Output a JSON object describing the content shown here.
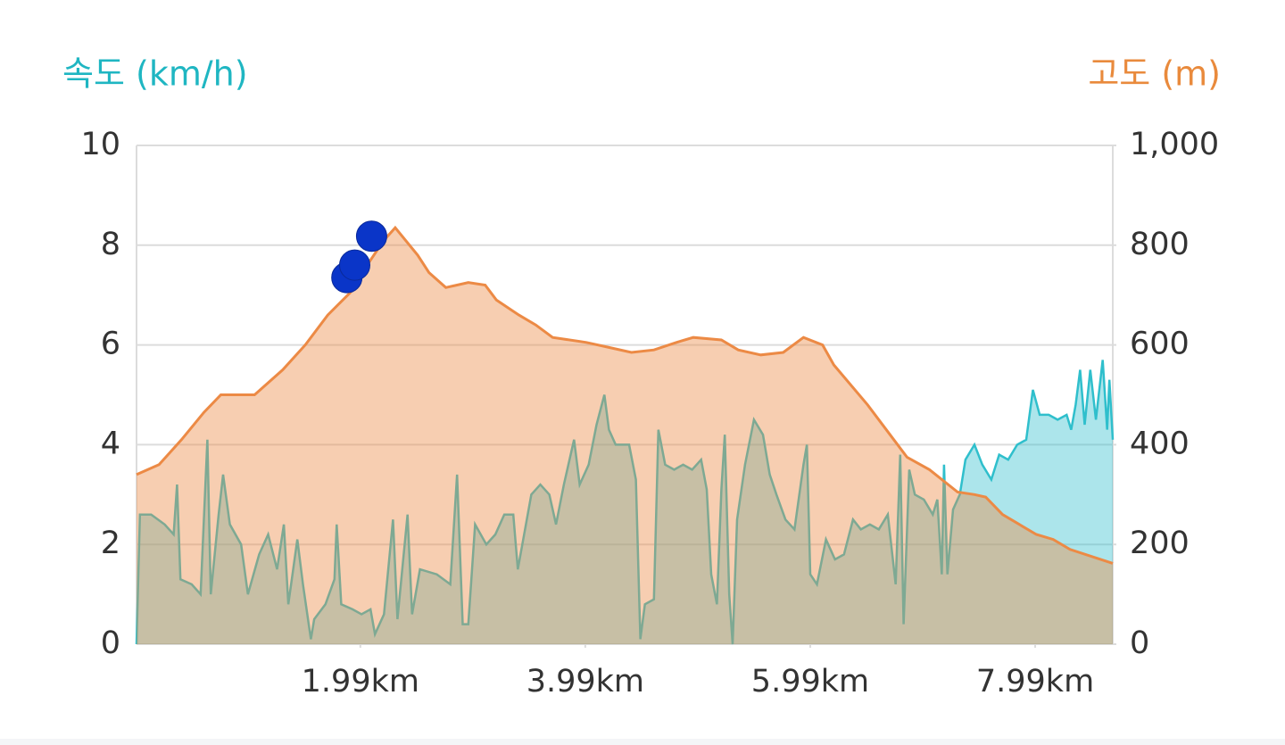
{
  "chart_data": {
    "type": "area",
    "xlim": [
      0,
      8.68
    ],
    "xticks": [
      {
        "value": 1.99,
        "label": "1.99km"
      },
      {
        "value": 3.99,
        "label": "3.99km"
      },
      {
        "value": 5.99,
        "label": "5.99km"
      },
      {
        "value": 7.99,
        "label": "7.99km"
      }
    ],
    "ylim": [
      0,
      10
    ],
    "yticks": [
      0,
      2,
      4,
      6,
      8,
      10
    ],
    "y2lim": [
      0,
      1000
    ],
    "y2ticks": [
      0,
      200,
      400,
      600,
      800,
      {
        "value": 1000,
        "label": "1,000"
      }
    ],
    "grid": true,
    "series": [
      {
        "name": "속도 (km/h)",
        "color": "#2fbfcc",
        "axis": "y",
        "x": [
          0,
          0.03,
          0.13,
          0.25,
          0.33,
          0.36,
          0.39,
          0.49,
          0.57,
          0.63,
          0.66,
          0.73,
          0.77,
          0.83,
          0.93,
          0.99,
          1.09,
          1.17,
          1.25,
          1.31,
          1.35,
          1.43,
          1.48,
          1.55,
          1.58,
          1.68,
          1.76,
          1.78,
          1.82,
          1.92,
          2.0,
          2.08,
          2.12,
          2.2,
          2.28,
          2.32,
          2.41,
          2.45,
          2.52,
          2.67,
          2.79,
          2.85,
          2.9,
          2.95,
          3.01,
          3.11,
          3.19,
          3.27,
          3.35,
          3.39,
          3.51,
          3.59,
          3.67,
          3.73,
          3.8,
          3.89,
          3.94,
          4.02,
          4.09,
          4.16,
          4.2,
          4.26,
          4.38,
          4.44,
          4.48,
          4.52,
          4.6,
          4.64,
          4.7,
          4.78,
          4.86,
          4.94,
          5.02,
          5.07,
          5.11,
          5.16,
          5.2,
          5.23,
          5.27,
          5.3,
          5.34,
          5.41,
          5.49,
          5.57,
          5.63,
          5.69,
          5.77,
          5.85,
          5.93,
          5.96,
          5.99,
          6.05,
          6.13,
          6.21,
          6.29,
          6.37,
          6.44,
          6.52,
          6.6,
          6.68,
          6.75,
          6.79,
          6.82,
          6.87,
          6.92,
          7.0,
          7.08,
          7.12,
          7.16,
          7.18,
          7.21,
          7.26,
          7.32,
          7.37,
          7.45,
          7.52,
          7.6,
          7.67,
          7.75,
          7.83,
          7.91,
          7.97,
          8.03,
          8.11,
          8.19,
          8.27,
          8.31,
          8.35,
          8.39,
          8.43,
          8.48,
          8.53,
          8.59,
          8.63,
          8.65,
          8.68
        ],
        "values": [
          0,
          2.6,
          2.6,
          2.4,
          2.2,
          3.2,
          1.3,
          1.2,
          1.0,
          4.1,
          1.0,
          2.6,
          3.4,
          2.4,
          2.0,
          1.0,
          1.8,
          2.2,
          1.5,
          2.4,
          0.8,
          2.1,
          1.2,
          0.1,
          0.5,
          0.8,
          1.3,
          2.4,
          0.8,
          0.7,
          0.6,
          0.7,
          0.2,
          0.6,
          2.5,
          0.5,
          2.6,
          0.6,
          1.5,
          1.4,
          1.2,
          3.4,
          0.4,
          0.4,
          2.4,
          2.0,
          2.2,
          2.6,
          2.6,
          1.5,
          3.0,
          3.2,
          3.0,
          2.4,
          3.2,
          4.1,
          3.2,
          3.6,
          4.4,
          5.0,
          4.3,
          4.0,
          4.0,
          3.3,
          0.1,
          0.8,
          0.9,
          4.3,
          3.6,
          3.5,
          3.6,
          3.5,
          3.7,
          3.1,
          1.4,
          0.8,
          3.1,
          4.2,
          1.0,
          0.0,
          2.5,
          3.6,
          4.5,
          4.2,
          3.4,
          3.0,
          2.5,
          2.3,
          3.6,
          4.0,
          1.4,
          1.2,
          2.1,
          1.7,
          1.8,
          2.5,
          2.3,
          2.4,
          2.3,
          2.6,
          1.2,
          3.8,
          0.4,
          3.5,
          3.0,
          2.9,
          2.6,
          2.9,
          1.4,
          3.6,
          1.4,
          2.7,
          3.0,
          3.7,
          4.0,
          3.6,
          3.3,
          3.8,
          3.7,
          4.0,
          4.1,
          5.1,
          4.6,
          4.6,
          4.5,
          4.6,
          4.3,
          4.8,
          5.5,
          4.4,
          5.5,
          4.5,
          5.7,
          4.3,
          5.3,
          4.1
        ]
      },
      {
        "name": "고도 (m)",
        "color": "#ec8a45",
        "axis": "y2",
        "x": [
          0,
          0.2,
          0.4,
          0.6,
          0.75,
          0.9,
          1.05,
          1.3,
          1.5,
          1.7,
          1.9,
          2.05,
          2.2,
          2.3,
          2.5,
          2.6,
          2.75,
          2.95,
          3.1,
          3.2,
          3.4,
          3.55,
          3.7,
          4.0,
          4.2,
          4.4,
          4.6,
          4.8,
          4.95,
          5.2,
          5.35,
          5.55,
          5.75,
          5.93,
          6.1,
          6.2,
          6.5,
          6.7,
          6.85,
          7.05,
          7.3,
          7.45,
          7.55,
          7.7,
          8.0,
          8.15,
          8.3,
          8.68
        ],
        "values": [
          340,
          360,
          410,
          465,
          500,
          500,
          500,
          550,
          600,
          660,
          705,
          760,
          810,
          835,
          780,
          745,
          715,
          725,
          720,
          690,
          660,
          640,
          615,
          605,
          595,
          585,
          590,
          605,
          615,
          610,
          590,
          580,
          585,
          615,
          600,
          560,
          480,
          420,
          375,
          350,
          305,
          300,
          295,
          260,
          220,
          210,
          190,
          162
        ]
      }
    ],
    "points": {
      "color": "#0a35c8",
      "axis": "y2",
      "x": [
        1.87,
        1.94,
        2.09
      ],
      "values": [
        735,
        760,
        818
      ]
    }
  }
}
